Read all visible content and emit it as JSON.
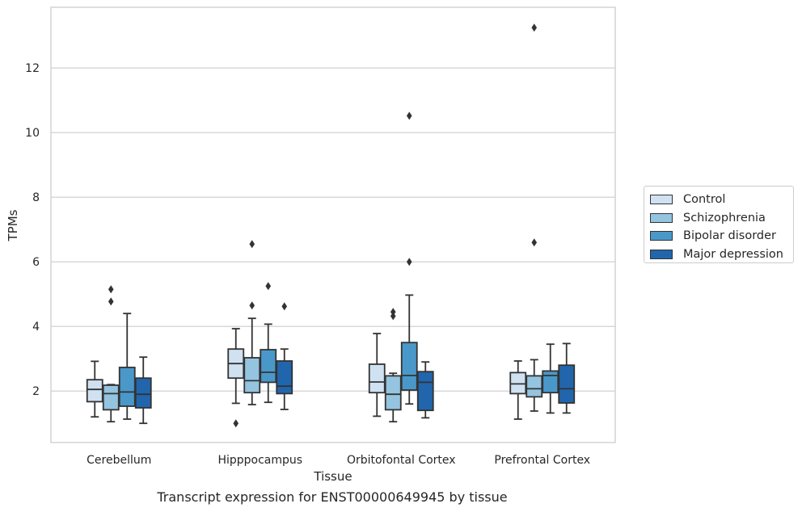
{
  "chart_data": {
    "type": "box",
    "title": "Transcript expression for ENST00000649945 by tissue",
    "xlabel": "Tissue",
    "ylabel": "TPMs",
    "ylim": [
      0.4,
      13.9
    ],
    "yticks": [
      "2",
      "4",
      "6",
      "8",
      "10",
      "12"
    ],
    "grid": "horizontal",
    "legend_position": "right",
    "categories": [
      "Cerebellum",
      "Hipppocampus",
      "Orbitofontal Cortex",
      "Prefrontal Cortex"
    ],
    "series": [
      {
        "name": "Control",
        "color": "#d0e1f2",
        "boxes": [
          {
            "whislo": 1.2,
            "q1": 1.67,
            "med": 2.05,
            "q3": 2.35,
            "whishi": 2.92,
            "fliers": []
          },
          {
            "whislo": 1.62,
            "q1": 2.4,
            "med": 2.85,
            "q3": 3.3,
            "whishi": 3.93,
            "fliers": [
              1.0
            ]
          },
          {
            "whislo": 1.22,
            "q1": 1.95,
            "med": 2.28,
            "q3": 2.83,
            "whishi": 3.78,
            "fliers": []
          },
          {
            "whislo": 1.13,
            "q1": 1.92,
            "med": 2.22,
            "q3": 2.57,
            "whishi": 2.93,
            "fliers": []
          }
        ]
      },
      {
        "name": "Schizophrenia",
        "color": "#94c4df",
        "boxes": [
          {
            "whislo": 1.05,
            "q1": 1.42,
            "med": 1.92,
            "q3": 2.18,
            "whishi": 2.2,
            "fliers": [
              5.15,
              4.77
            ]
          },
          {
            "whislo": 1.58,
            "q1": 1.95,
            "med": 2.32,
            "q3": 3.03,
            "whishi": 4.25,
            "fliers": [
              6.55,
              4.65
            ]
          },
          {
            "whislo": 1.05,
            "q1": 1.42,
            "med": 1.9,
            "q3": 2.47,
            "whishi": 2.55,
            "fliers": [
              4.45,
              4.32
            ]
          },
          {
            "whislo": 1.38,
            "q1": 1.82,
            "med": 2.07,
            "q3": 2.47,
            "whishi": 2.97,
            "fliers": [
              13.25,
              6.6
            ]
          }
        ]
      },
      {
        "name": "Bipolar disorder",
        "color": "#4a98c9",
        "boxes": [
          {
            "whislo": 1.13,
            "q1": 1.53,
            "med": 1.97,
            "q3": 2.73,
            "whishi": 4.4,
            "fliers": []
          },
          {
            "whislo": 1.65,
            "q1": 2.27,
            "med": 2.58,
            "q3": 3.28,
            "whishi": 4.07,
            "fliers": [
              5.25
            ]
          },
          {
            "whislo": 1.6,
            "q1": 2.03,
            "med": 2.48,
            "q3": 3.5,
            "whishi": 4.97,
            "fliers": [
              10.52,
              6.0
            ]
          },
          {
            "whislo": 1.32,
            "q1": 1.95,
            "med": 2.48,
            "q3": 2.62,
            "whishi": 3.45,
            "fliers": []
          }
        ]
      },
      {
        "name": "Major depression",
        "color": "#2166ac",
        "boxes": [
          {
            "whislo": 1.0,
            "q1": 1.48,
            "med": 1.9,
            "q3": 2.4,
            "whishi": 3.05,
            "fliers": []
          },
          {
            "whislo": 1.43,
            "q1": 1.92,
            "med": 2.15,
            "q3": 2.93,
            "whishi": 3.3,
            "fliers": [
              4.62
            ]
          },
          {
            "whislo": 1.17,
            "q1": 1.4,
            "med": 2.27,
            "q3": 2.6,
            "whishi": 2.9,
            "fliers": []
          },
          {
            "whislo": 1.32,
            "q1": 1.63,
            "med": 2.07,
            "q3": 2.8,
            "whishi": 3.47,
            "fliers": []
          }
        ]
      }
    ]
  }
}
